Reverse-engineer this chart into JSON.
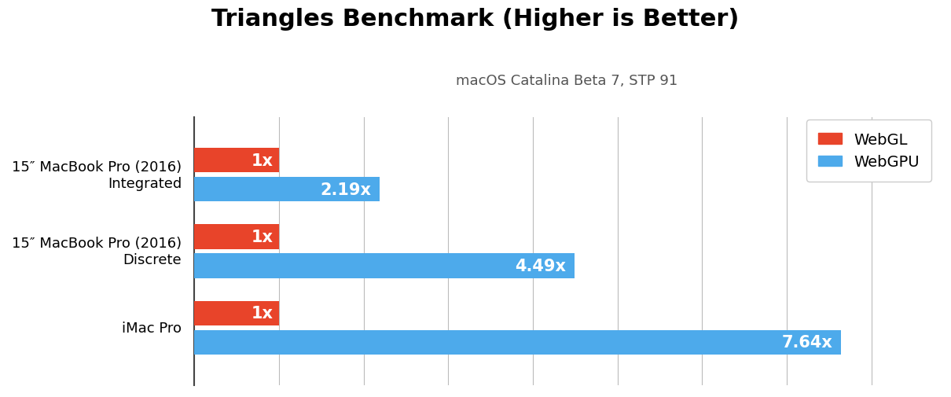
{
  "title": "Triangles Benchmark (Higher is Better)",
  "subtitle": "macOS Catalina Beta 7, STP 91",
  "categories": [
    "iMac Pro",
    "15″ MacBook Pro (2016)\nDiscrete",
    "15″ MacBook Pro (2016)\nIntegrated"
  ],
  "webgl_values": [
    1,
    1,
    1
  ],
  "webgpu_values": [
    7.64,
    4.49,
    2.19
  ],
  "webgl_labels": [
    "1x",
    "1x",
    "1x"
  ],
  "webgpu_labels": [
    "7.64x",
    "4.49x",
    "2.19x"
  ],
  "webgl_color": "#E8442A",
  "webgpu_color": "#4DAAEB",
  "title_fontsize": 22,
  "subtitle_fontsize": 13,
  "label_fontsize": 15,
  "ytick_fontsize": 13,
  "legend_fontsize": 14,
  "bar_height": 0.32,
  "bar_gap": 0.06,
  "xlim": [
    0,
    8.8
  ],
  "background_color": "#ffffff",
  "grid_color": "#bbbbbb"
}
